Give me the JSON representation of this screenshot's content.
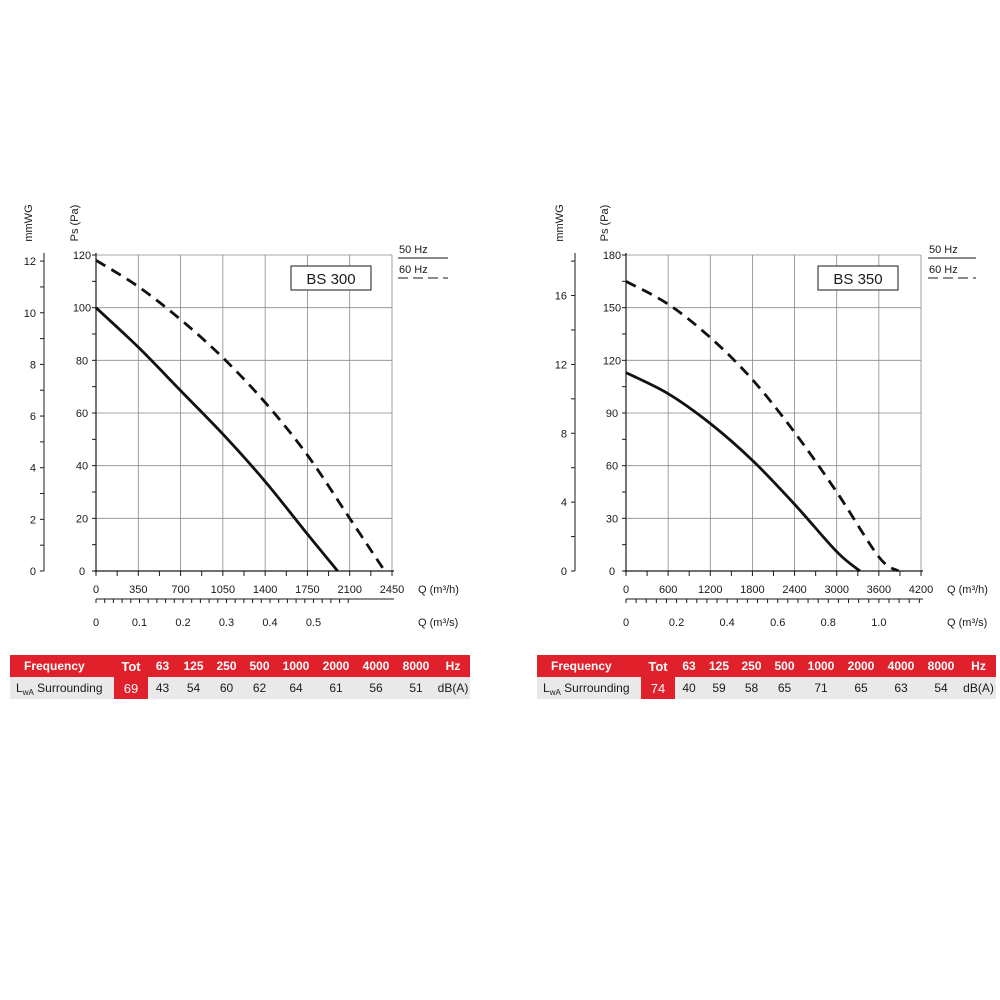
{
  "chart_data": [
    {
      "type": "line",
      "title": "BS 300",
      "y_primary_label": "Ps (Pa)",
      "y_secondary_label": "mmWG",
      "x_primary_label": "Q (m³/h)",
      "x_secondary_label": "Q (m³/s)",
      "ylim": [
        0,
        120
      ],
      "y_ticks": [
        0,
        20,
        40,
        60,
        80,
        100,
        120
      ],
      "y_secondary_ticks": [
        0,
        2,
        4,
        6,
        8,
        10,
        12
      ],
      "xlim": [
        0,
        2450
      ],
      "x_ticks": [
        0,
        350,
        700,
        1050,
        1400,
        1750,
        2100,
        2450
      ],
      "x_secondary_ticks": [
        0,
        0.1,
        0.2,
        0.3,
        0.4,
        0.5
      ],
      "x_secondary_tick_labels": [
        "0",
        "0.1",
        "0.2",
        "0.3",
        "0.4",
        "0.5"
      ],
      "grid": true,
      "legend": [
        {
          "label": "50 Hz",
          "style": "solid"
        },
        {
          "label": "60 Hz",
          "style": "dashed"
        }
      ],
      "series": [
        {
          "name": "50 Hz",
          "style": "solid",
          "x": [
            0,
            350,
            700,
            1050,
            1400,
            1750,
            2000
          ],
          "y": [
            100,
            85,
            68.5,
            52,
            34,
            14,
            0
          ]
        },
        {
          "name": "60 Hz",
          "style": "dashed",
          "x": [
            0,
            350,
            700,
            1050,
            1400,
            1750,
            2100,
            2390
          ],
          "y": [
            118,
            108,
            95.5,
            81,
            64,
            44,
            20,
            0
          ]
        }
      ]
    },
    {
      "type": "line",
      "title": "BS 350",
      "y_primary_label": "Ps (Pa)",
      "y_secondary_label": "mmWG",
      "x_primary_label": "Q (m³/h)",
      "x_secondary_label": "Q (m³/s)",
      "ylim": [
        0,
        180
      ],
      "y_ticks": [
        0,
        30,
        60,
        90,
        120,
        150,
        180
      ],
      "y_secondary_ticks": [
        0,
        4,
        8,
        12,
        16
      ],
      "xlim": [
        0,
        4200
      ],
      "x_ticks": [
        0,
        600,
        1200,
        1800,
        2400,
        3000,
        3600,
        4200
      ],
      "x_secondary_ticks": [
        0,
        0.2,
        0.4,
        0.6,
        0.8,
        1.0
      ],
      "x_secondary_tick_labels": [
        "0",
        "0.2",
        "0.4",
        "0.6",
        "0.8",
        "1.0"
      ],
      "grid": true,
      "legend": [
        {
          "label": "50 Hz",
          "style": "solid"
        },
        {
          "label": "60 Hz",
          "style": "dashed"
        }
      ],
      "series": [
        {
          "name": "50 Hz",
          "style": "solid",
          "x": [
            0,
            600,
            1200,
            1800,
            2400,
            3000,
            3330
          ],
          "y": [
            113,
            101,
            84,
            63,
            38,
            11,
            0
          ]
        },
        {
          "name": "60 Hz",
          "style": "dashed",
          "x": [
            0,
            600,
            1200,
            1800,
            2400,
            3000,
            3600,
            3880
          ],
          "y": [
            165,
            152,
            133,
            109,
            79,
            45,
            8,
            0
          ]
        }
      ]
    }
  ],
  "noise_tables": [
    {
      "header_label": "Frequency",
      "tot_label": "Tot",
      "bands": [
        "63",
        "125",
        "250",
        "500",
        "1000",
        "2000",
        "4000",
        "8000"
      ],
      "hz_label": "Hz",
      "row_label_L": "L",
      "row_label_sub": "wA",
      "row_label_rest": " Surrounding",
      "tot_value": "69",
      "values": [
        "43",
        "54",
        "60",
        "62",
        "64",
        "61",
        "56",
        "51"
      ],
      "unit": "dB(A)"
    },
    {
      "header_label": "Frequency",
      "tot_label": "Tot",
      "bands": [
        "63",
        "125",
        "250",
        "500",
        "1000",
        "2000",
        "4000",
        "8000"
      ],
      "hz_label": "Hz",
      "row_label_L": "L",
      "row_label_sub": "wA",
      "row_label_rest": " Surrounding",
      "tot_value": "74",
      "values": [
        "40",
        "59",
        "58",
        "65",
        "71",
        "65",
        "63",
        "54"
      ],
      "unit": "dB(A)"
    }
  ]
}
